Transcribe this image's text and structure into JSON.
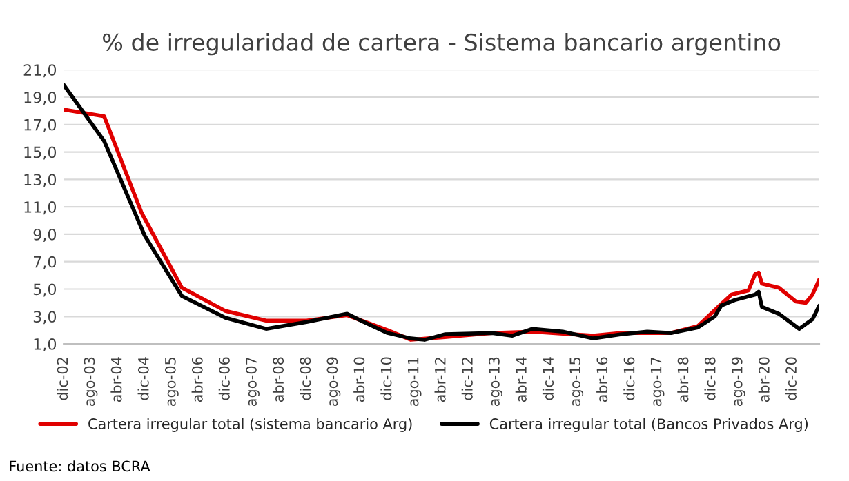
{
  "chart_data": {
    "type": "line",
    "title": "% de irregularidad de cartera - Sistema bancario argentino",
    "annotations": [
      "Fuente: datos BCRA"
    ],
    "xlim": [
      "2002-12",
      "2021-08"
    ],
    "xticks": [
      {
        "value": "2002-12",
        "label": "dic-02"
      },
      {
        "value": "2003-08",
        "label": "ago-03"
      },
      {
        "value": "2004-04",
        "label": "abr-04"
      },
      {
        "value": "2004-12",
        "label": "dic-04"
      },
      {
        "value": "2005-08",
        "label": "ago-05"
      },
      {
        "value": "2006-04",
        "label": "abr-06"
      },
      {
        "value": "2006-12",
        "label": "dic-06"
      },
      {
        "value": "2007-08",
        "label": "ago-07"
      },
      {
        "value": "2008-04",
        "label": "abr-08"
      },
      {
        "value": "2008-12",
        "label": "dic-08"
      },
      {
        "value": "2009-08",
        "label": "ago-09"
      },
      {
        "value": "2010-04",
        "label": "abr-10"
      },
      {
        "value": "2010-12",
        "label": "dic-10"
      },
      {
        "value": "2011-08",
        "label": "ago-11"
      },
      {
        "value": "2012-04",
        "label": "abr-12"
      },
      {
        "value": "2012-12",
        "label": "dic-12"
      },
      {
        "value": "2013-08",
        "label": "ago-13"
      },
      {
        "value": "2014-04",
        "label": "abr-14"
      },
      {
        "value": "2014-12",
        "label": "dic-14"
      },
      {
        "value": "2015-08",
        "label": "ago-15"
      },
      {
        "value": "2016-04",
        "label": "abr-16"
      },
      {
        "value": "2016-12",
        "label": "dic-16"
      },
      {
        "value": "2017-08",
        "label": "ago-17"
      },
      {
        "value": "2018-04",
        "label": "abr-18"
      },
      {
        "value": "2018-12",
        "label": "dic-18"
      },
      {
        "value": "2019-08",
        "label": "ago-19"
      },
      {
        "value": "2020-04",
        "label": "abr-20"
      },
      {
        "value": "2020-12",
        "label": "dic-20"
      }
    ],
    "ylim": [
      1,
      21
    ],
    "yticks": [
      {
        "value": 1,
        "label": "1,0"
      },
      {
        "value": 3,
        "label": "3,0"
      },
      {
        "value": 5,
        "label": "5,0"
      },
      {
        "value": 7,
        "label": "7,0"
      },
      {
        "value": 9,
        "label": "9,0"
      },
      {
        "value": 11,
        "label": "11,0"
      },
      {
        "value": 13,
        "label": "13,0"
      },
      {
        "value": 15,
        "label": "15,0"
      },
      {
        "value": 17,
        "label": "17,0"
      },
      {
        "value": 19,
        "label": "19,0"
      },
      {
        "value": 21,
        "label": "21,0"
      }
    ],
    "grid": "y",
    "legend": "bottom",
    "line_style": "solid",
    "marker": "none",
    "series": [
      {
        "name": "Cartera irregular total (sistema bancario Arg)",
        "color": "#e00000",
        "x": [
          "2002-12",
          "2003-12",
          "2004-11",
          "2005-11",
          "2006-12",
          "2007-12",
          "2008-12",
          "2009-12",
          "2010-12",
          "2011-07",
          "2012-05",
          "2013-07",
          "2014-07",
          "2016-01",
          "2016-09",
          "2017-12",
          "2018-08",
          "2019-02",
          "2019-06",
          "2019-11",
          "2020-01",
          "2020-02",
          "2020-03",
          "2020-08",
          "2021-01",
          "2021-04",
          "2021-06",
          "2021-08"
        ],
        "values": [
          18.1,
          17.6,
          10.6,
          5.1,
          3.4,
          2.7,
          2.7,
          3.1,
          2.0,
          1.3,
          1.5,
          1.8,
          1.9,
          1.6,
          1.8,
          1.8,
          2.3,
          3.7,
          4.6,
          4.9,
          6.1,
          6.2,
          5.4,
          5.1,
          4.1,
          4.0,
          4.6,
          5.7
        ]
      },
      {
        "name": "Cartera irregular total (Bancos Privados Arg)",
        "color": "#000000",
        "x": [
          "2002-12",
          "2003-12",
          "2004-12",
          "2005-11",
          "2006-12",
          "2007-12",
          "2008-12",
          "2009-12",
          "2010-05",
          "2010-12",
          "2011-07",
          "2011-11",
          "2012-05",
          "2013-07",
          "2014-01",
          "2014-07",
          "2015-04",
          "2016-01",
          "2016-09",
          "2017-05",
          "2017-12",
          "2018-08",
          "2019-01",
          "2019-03",
          "2019-07",
          "2020-01",
          "2020-02",
          "2020-03",
          "2020-08",
          "2021-02",
          "2021-06",
          "2021-08"
        ],
        "values": [
          19.9,
          15.8,
          8.9,
          4.5,
          2.9,
          2.1,
          2.6,
          3.2,
          2.6,
          1.8,
          1.4,
          1.3,
          1.7,
          1.8,
          1.6,
          2.1,
          1.9,
          1.4,
          1.7,
          1.9,
          1.8,
          2.2,
          3.0,
          3.8,
          4.2,
          4.6,
          4.8,
          3.7,
          3.2,
          2.1,
          2.8,
          3.8
        ]
      }
    ]
  }
}
